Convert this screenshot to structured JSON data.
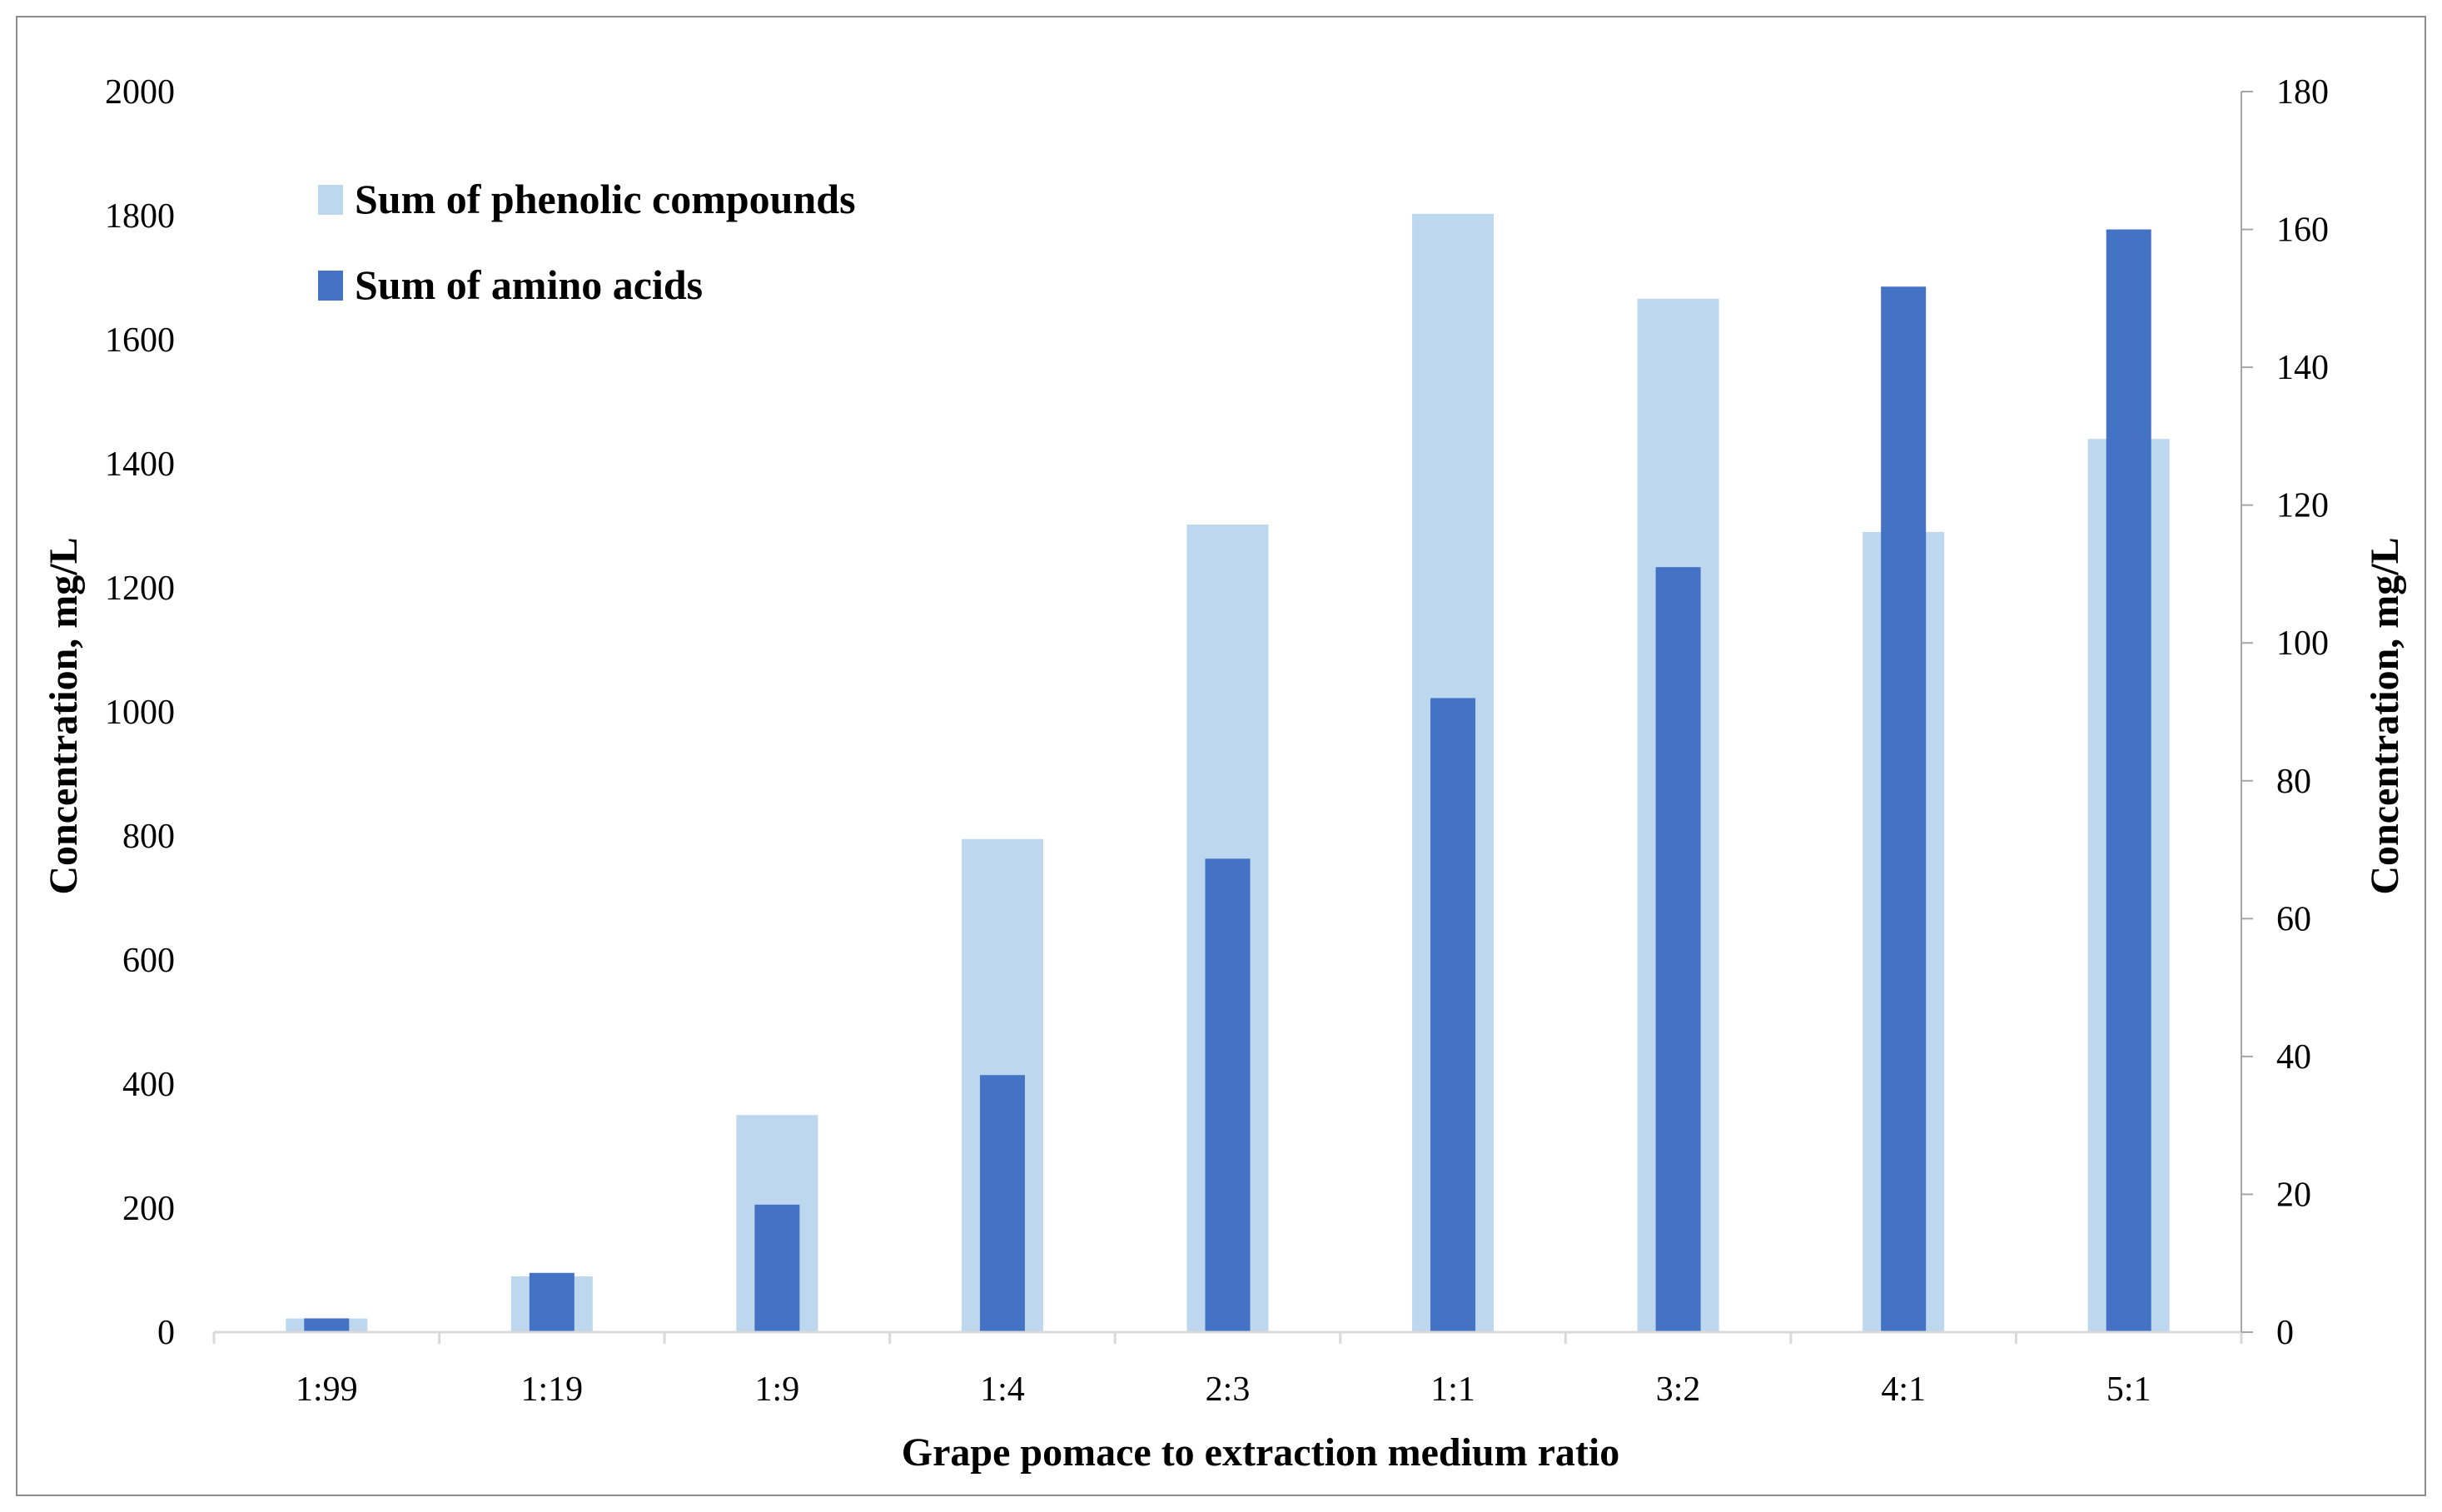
{
  "chart_data": {
    "type": "bar",
    "categories": [
      "1:99",
      "1:19",
      "1:9",
      "1:4",
      "2:3",
      "1:1",
      "3:2",
      "4:1",
      "5:1"
    ],
    "series": [
      {
        "name": "Sum of phenolic compounds",
        "axis": "left",
        "color": "#bdd7ee",
        "values": [
          22,
          90,
          350,
          795,
          1302,
          1803,
          1666,
          1290,
          1440
        ]
      },
      {
        "name": "Sum of amino acids",
        "axis": "right",
        "color": "#4472c4",
        "values": [
          2,
          8.6,
          18.5,
          37.3,
          68.7,
          92,
          111,
          151.7,
          160
        ]
      }
    ],
    "xlabel": "Grape pomace to extraction medium ratio",
    "ylabel": "Concentration, mg/L",
    "y2label": "Concentration, mg/L",
    "ylim": [
      0,
      2000
    ],
    "y2lim": [
      0,
      180
    ],
    "yticks": [
      "0",
      "200",
      "400",
      "600",
      "800",
      "1000",
      "1200",
      "1400",
      "1600",
      "1800",
      "2000"
    ],
    "y2ticks": [
      "0",
      "20",
      "40",
      "60",
      "80",
      "100",
      "120",
      "140",
      "160",
      "180"
    ],
    "legend_position": "top-left",
    "grid": false
  }
}
